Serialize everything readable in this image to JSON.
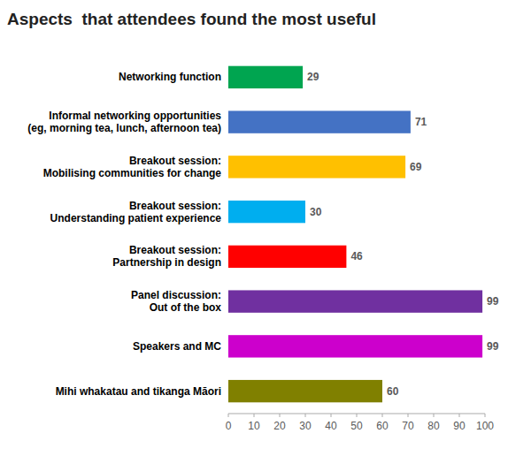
{
  "chart_data": {
    "type": "bar",
    "orientation": "horizontal",
    "title": "Aspects  that attendees found the most useful",
    "categories": [
      "Mihi whakatau and tikanga Māori",
      "Speakers and MC",
      "Panel discussion:\nOut of the box",
      "Breakout session:\nPartnership in design",
      "Breakout session:\nUnderstanding patient experience",
      "Breakout session:\nMobilising communities for change",
      "Informal networking opportunities\n(eg, morning tea, lunch, afternoon tea)",
      "Networking function"
    ],
    "values": [
      60,
      99,
      99,
      46,
      30,
      69,
      71,
      29
    ],
    "colors": [
      "#808000",
      "#CC00CC",
      "#7030A0",
      "#FF0000",
      "#00AEEF",
      "#FFC000",
      "#4472C4",
      "#00A550"
    ],
    "xlim": [
      0,
      100
    ],
    "xticks": [
      0,
      10,
      20,
      30,
      40,
      50,
      60,
      70,
      80,
      90,
      100
    ],
    "data_labels": true,
    "grid": false
  }
}
